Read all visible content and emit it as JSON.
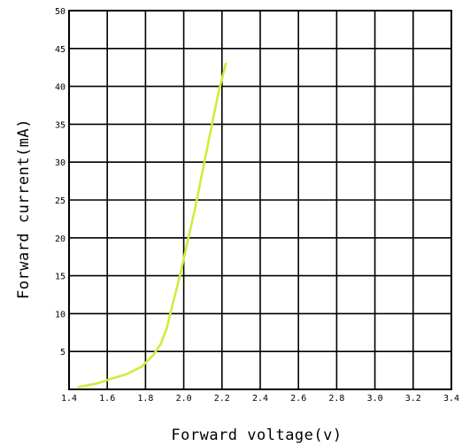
{
  "chart_data": {
    "type": "line",
    "title": "",
    "xlabel": "Forward voltage(v)",
    "ylabel": "Forward current(mA)",
    "xlim": [
      1.4,
      3.4
    ],
    "ylim": [
      0,
      50
    ],
    "x_ticks": [
      "1.4",
      "1.6",
      "1.8",
      "2.0",
      "2.2",
      "2.4",
      "2.6",
      "2.8",
      "3.0",
      "3.2",
      "3.4"
    ],
    "y_ticks": [
      "5",
      "10",
      "15",
      "20",
      "25",
      "30",
      "35",
      "40",
      "45",
      "50"
    ],
    "grid": true,
    "series": [
      {
        "color": "#c8f03c",
        "x": [
          1.45,
          1.55,
          1.62,
          1.7,
          1.78,
          1.84,
          1.88,
          1.91,
          1.94,
          1.98,
          2.02,
          2.06,
          2.1,
          2.14,
          2.18,
          2.22
        ],
        "y": [
          0.3,
          0.8,
          1.4,
          2.0,
          3.0,
          4.5,
          6.0,
          8.0,
          11.0,
          15.0,
          19.5,
          24.0,
          29.0,
          34.0,
          39.0,
          43.0
        ]
      }
    ]
  }
}
